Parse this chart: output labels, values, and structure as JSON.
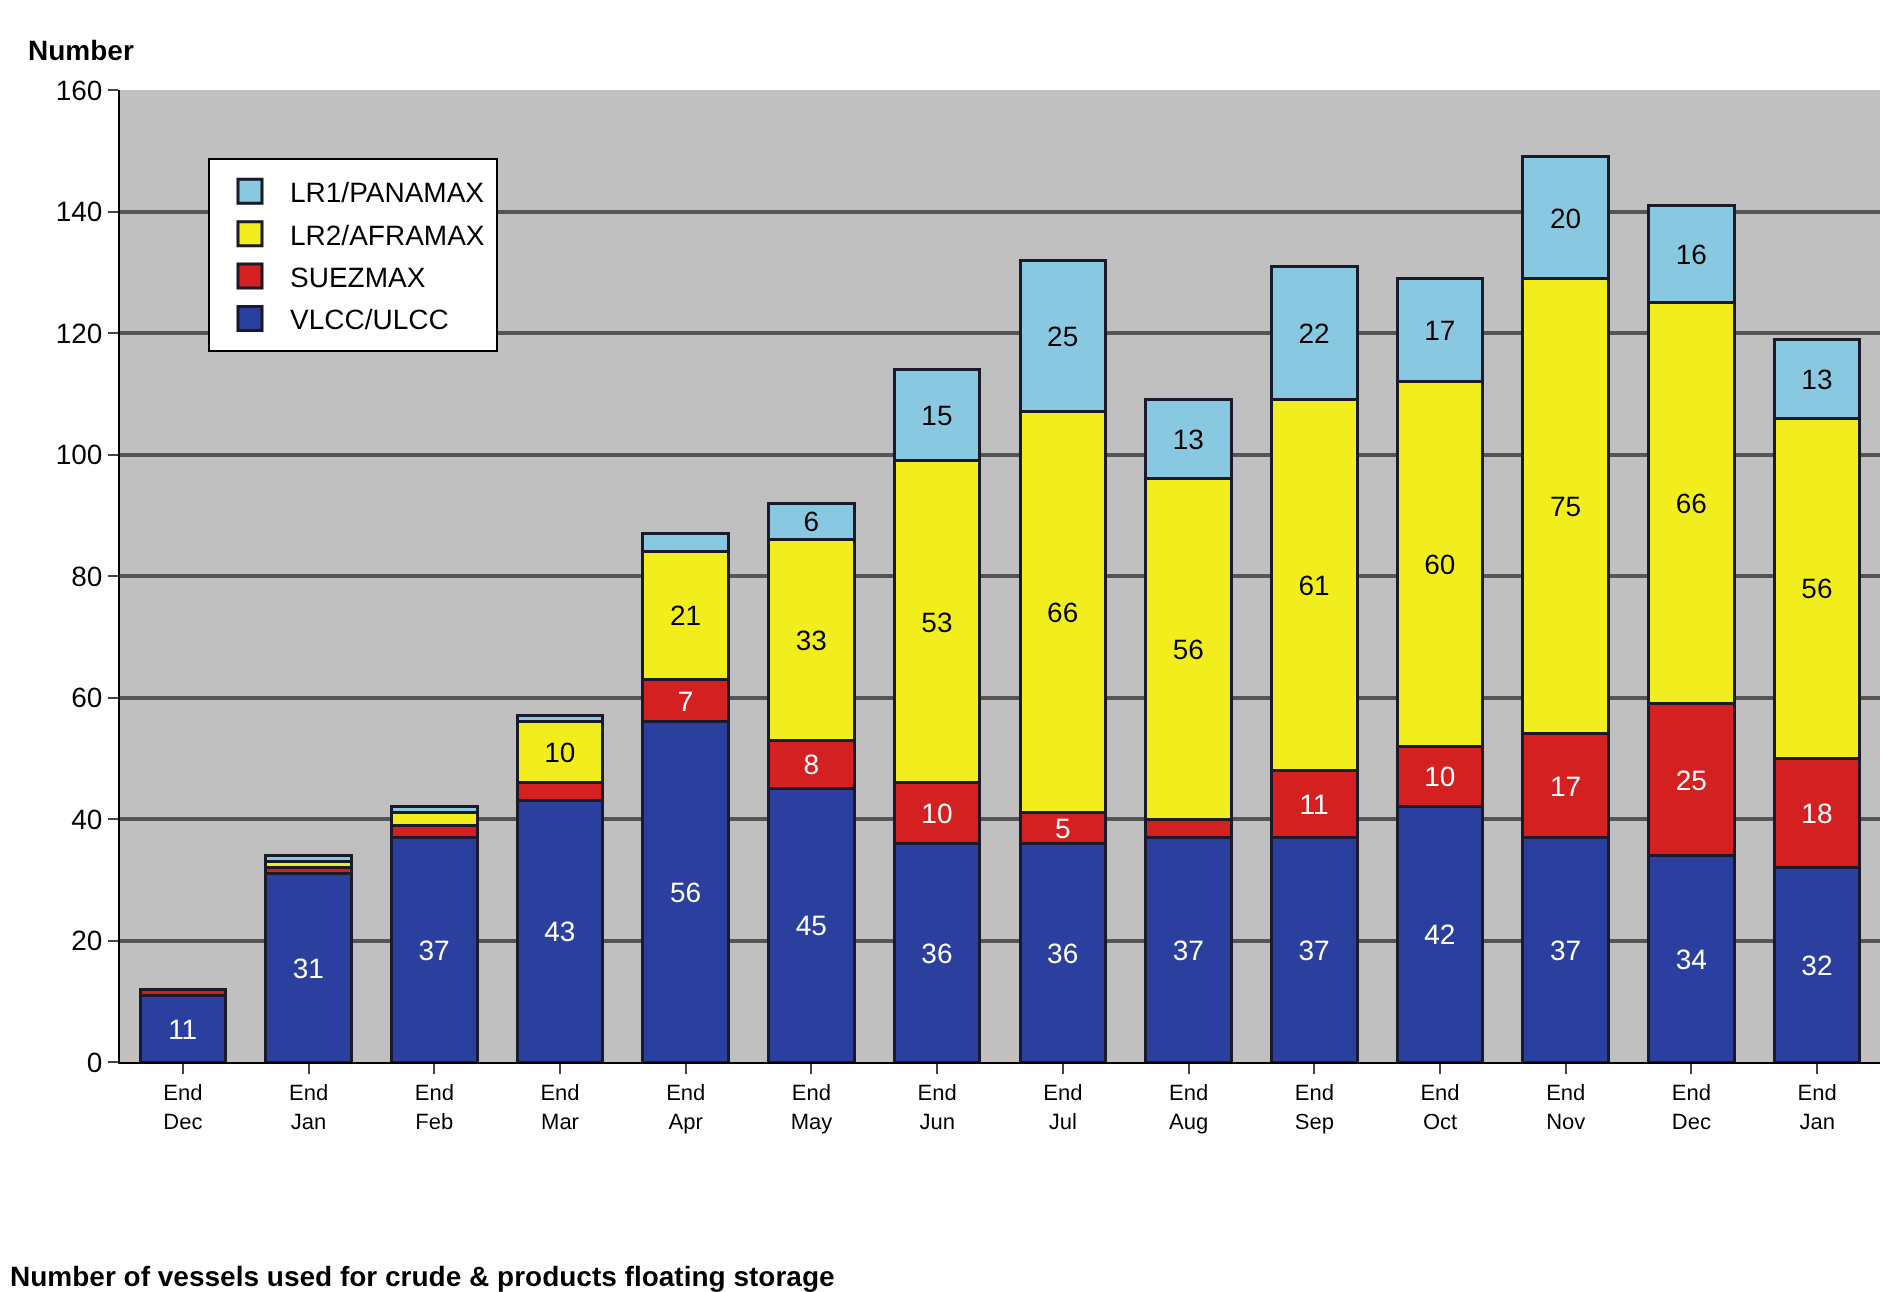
{
  "chart_data": {
    "type": "bar",
    "stacked": true,
    "title": "Number of vessels used for crude & products floating storage",
    "ylabel": "Number",
    "categories": [
      "End\nDec",
      "End\nJan",
      "End\nFeb",
      "End\nMar",
      "End\nApr",
      "End\nMay",
      "End\nJun",
      "End\nJul",
      "End\nAug",
      "End\nSep",
      "End\nOct",
      "End\nNov",
      "End\nDec",
      "End\nJan"
    ],
    "series": [
      {
        "name": "VLCC/ULCC",
        "color": "#2b3f9e",
        "values": [
          11,
          31,
          37,
          43,
          56,
          45,
          36,
          36,
          37,
          37,
          42,
          37,
          34,
          32
        ],
        "value_labels": [
          "11",
          "31",
          "37",
          "43",
          "56",
          "45",
          "36",
          "36",
          "37",
          "37",
          "42",
          "37",
          "34",
          "32"
        ]
      },
      {
        "name": "SUEZMAX",
        "color": "#d42020",
        "values": [
          1,
          1,
          2,
          3,
          7,
          8,
          10,
          5,
          3,
          11,
          10,
          17,
          25,
          18
        ],
        "value_labels": [
          null,
          null,
          null,
          null,
          "7",
          "8",
          "10",
          "5",
          null,
          "11",
          "10",
          "17",
          "25",
          "18"
        ]
      },
      {
        "name": "LR2/AFRAMAX",
        "color": "#f2ee1e",
        "values": [
          null,
          1,
          2,
          10,
          21,
          33,
          53,
          66,
          56,
          61,
          60,
          75,
          66,
          56
        ],
        "value_labels": [
          null,
          null,
          null,
          "10",
          "21",
          "33",
          "53",
          "66",
          "56",
          "61",
          "60",
          "75",
          "66",
          "56"
        ]
      },
      {
        "name": "LR1/PANAMAX",
        "color": "#88c8e0",
        "values": [
          null,
          1,
          1,
          1,
          3,
          6,
          15,
          25,
          13,
          22,
          17,
          20,
          16,
          13
        ],
        "value_labels": [
          null,
          null,
          null,
          null,
          null,
          "6",
          "15",
          "25",
          "13",
          "22",
          "17",
          "20",
          "16",
          "13"
        ]
      }
    ],
    "ylim": [
      0,
      160
    ],
    "yticks": [
      0,
      20,
      40,
      60,
      80,
      100,
      120,
      140,
      160
    ],
    "grid": "y",
    "legend": "top left"
  }
}
